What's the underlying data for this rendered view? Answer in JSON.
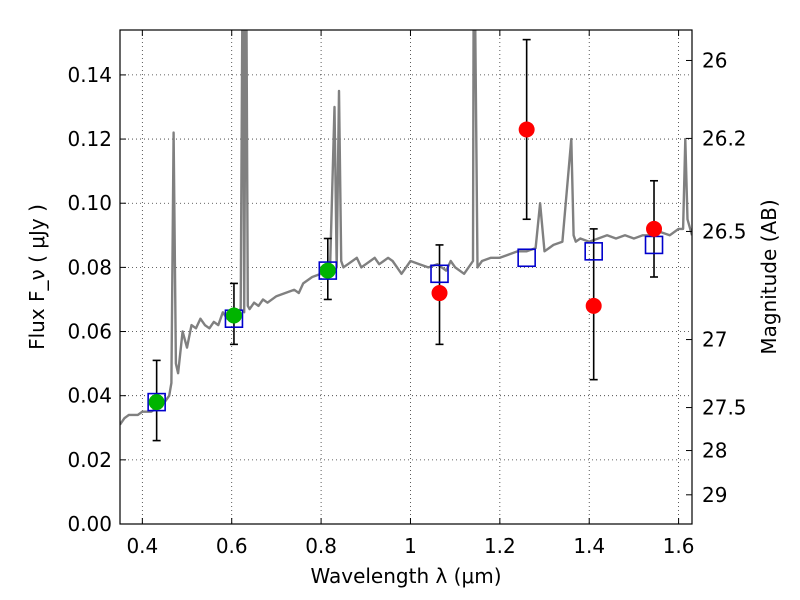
{
  "chart_data": {
    "type": "scatter",
    "title": "",
    "xlabel": "Wavelength  λ (μm)",
    "ylabel": "Flux  F_ν  ( μJy )",
    "y2label": "Magnitude (AB)",
    "xlim": [
      0.35,
      1.63
    ],
    "ylim": [
      0.0,
      0.154
    ],
    "grid": true,
    "x_ticks": [
      {
        "value": 0.4,
        "label": "0.4"
      },
      {
        "value": 0.6,
        "label": "0.6"
      },
      {
        "value": 0.8,
        "label": "0.8"
      },
      {
        "value": 1.0,
        "label": "1"
      },
      {
        "value": 1.2,
        "label": "1.2"
      },
      {
        "value": 1.4,
        "label": "1.4"
      },
      {
        "value": 1.6,
        "label": "1.6"
      }
    ],
    "y_ticks": [
      {
        "value": 0.0,
        "label": "0.00"
      },
      {
        "value": 0.02,
        "label": "0.02"
      },
      {
        "value": 0.04,
        "label": "0.04"
      },
      {
        "value": 0.06,
        "label": "0.06"
      },
      {
        "value": 0.08,
        "label": "0.08"
      },
      {
        "value": 0.1,
        "label": "0.10"
      },
      {
        "value": 0.12,
        "label": "0.12"
      },
      {
        "value": 0.14,
        "label": "0.14"
      }
    ],
    "y2_ticks": [
      {
        "flux": 0.1445,
        "label": "26"
      },
      {
        "flux": 0.1202,
        "label": "26.2"
      },
      {
        "flux": 0.0912,
        "label": "26.5"
      },
      {
        "flux": 0.0575,
        "label": "27"
      },
      {
        "flux": 0.0363,
        "label": "27.5"
      },
      {
        "flux": 0.0229,
        "label": "28"
      },
      {
        "flux": 0.0091,
        "label": "29"
      }
    ],
    "series": [
      {
        "kind": "line",
        "color": "#808080",
        "x": [
          0.35,
          0.36,
          0.37,
          0.38,
          0.39,
          0.4,
          0.41,
          0.42,
          0.43,
          0.44,
          0.45,
          0.46,
          0.465,
          0.47,
          0.475,
          0.48,
          0.49,
          0.5,
          0.51,
          0.52,
          0.53,
          0.54,
          0.55,
          0.56,
          0.57,
          0.58,
          0.59,
          0.6,
          0.61,
          0.62,
          0.625,
          0.628,
          0.632,
          0.636,
          0.64,
          0.65,
          0.66,
          0.67,
          0.68,
          0.7,
          0.72,
          0.74,
          0.75,
          0.76,
          0.78,
          0.8,
          0.82,
          0.83,
          0.835,
          0.84,
          0.845,
          0.85,
          0.86,
          0.87,
          0.88,
          0.89,
          0.9,
          0.91,
          0.92,
          0.93,
          0.94,
          0.95,
          0.96,
          0.97,
          0.98,
          0.99,
          1.0,
          1.02,
          1.04,
          1.06,
          1.08,
          1.09,
          1.1,
          1.12,
          1.14,
          1.142,
          1.15,
          1.16,
          1.18,
          1.2,
          1.22,
          1.24,
          1.26,
          1.28,
          1.29,
          1.3,
          1.31,
          1.32,
          1.34,
          1.36,
          1.365,
          1.37,
          1.38,
          1.4,
          1.42,
          1.44,
          1.46,
          1.48,
          1.5,
          1.52,
          1.54,
          1.56,
          1.58,
          1.6,
          1.61,
          1.615,
          1.62,
          1.63
        ],
        "y": [
          0.031,
          0.033,
          0.034,
          0.034,
          0.034,
          0.035,
          0.035,
          0.035,
          0.036,
          0.037,
          0.038,
          0.04,
          0.044,
          0.122,
          0.05,
          0.047,
          0.06,
          0.055,
          0.062,
          0.061,
          0.064,
          0.062,
          0.061,
          0.063,
          0.062,
          0.066,
          0.064,
          0.067,
          0.066,
          0.067,
          0.19,
          0.066,
          0.19,
          0.068,
          0.067,
          0.069,
          0.068,
          0.07,
          0.069,
          0.071,
          0.072,
          0.073,
          0.072,
          0.075,
          0.077,
          0.078,
          0.079,
          0.13,
          0.08,
          0.135,
          0.082,
          0.08,
          0.081,
          0.082,
          0.083,
          0.08,
          0.081,
          0.082,
          0.083,
          0.081,
          0.082,
          0.083,
          0.082,
          0.08,
          0.078,
          0.08,
          0.082,
          0.081,
          0.08,
          0.081,
          0.079,
          0.082,
          0.08,
          0.078,
          0.082,
          0.2,
          0.08,
          0.082,
          0.083,
          0.083,
          0.084,
          0.085,
          0.085,
          0.086,
          0.1,
          0.085,
          0.086,
          0.087,
          0.088,
          0.12,
          0.09,
          0.088,
          0.089,
          0.088,
          0.089,
          0.09,
          0.089,
          0.09,
          0.089,
          0.09,
          0.09,
          0.091,
          0.09,
          0.092,
          0.092,
          0.12,
          0.095,
          0.09
        ]
      },
      {
        "kind": "open-square",
        "color": "#0000cc",
        "x": [
          0.432,
          0.605,
          0.815,
          1.065,
          1.26,
          1.41,
          1.545
        ],
        "y": [
          0.038,
          0.064,
          0.079,
          0.078,
          0.083,
          0.085,
          0.087
        ]
      },
      {
        "kind": "filled-circle",
        "color": "#00b400",
        "x": [
          0.432,
          0.605,
          0.815
        ],
        "y": [
          0.038,
          0.065,
          0.079
        ]
      },
      {
        "kind": "filled-circle-errorbar",
        "color": "#ff0000",
        "x": [
          1.065,
          1.26,
          1.41,
          1.545
        ],
        "y": [
          0.072,
          0.123,
          0.068,
          0.092
        ],
        "yerr_low": [
          0.056,
          0.095,
          0.045,
          0.077
        ],
        "yerr_high": [
          0.087,
          0.151,
          0.092,
          0.107
        ]
      },
      {
        "kind": "errorbar-only",
        "color": "#000000",
        "x": [
          0.432,
          0.605,
          0.815
        ],
        "yerr_low": [
          0.026,
          0.056,
          0.07
        ],
        "yerr_high": [
          0.051,
          0.075,
          0.089
        ]
      }
    ]
  }
}
